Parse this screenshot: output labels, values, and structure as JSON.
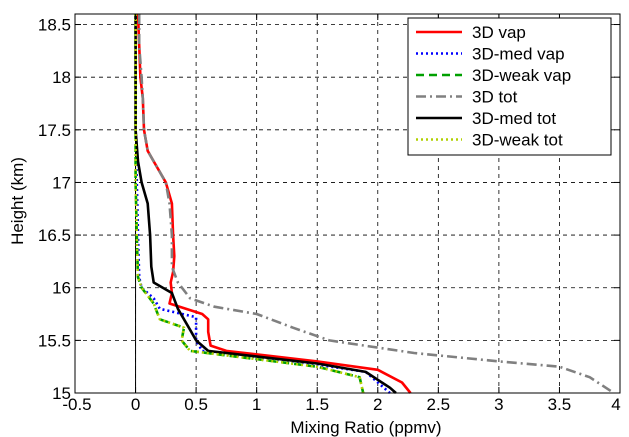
{
  "chart_data": {
    "type": "line",
    "title": "",
    "xlabel": "Mixing Ratio (ppmv)",
    "ylabel": "Height (km)",
    "xlim": [
      -0.5,
      4
    ],
    "ylim": [
      15,
      18.6
    ],
    "xticks": [
      -0.5,
      0,
      0.5,
      1,
      1.5,
      2,
      2.5,
      3,
      3.5,
      4
    ],
    "xtick_labels": [
      "-0.5",
      "0",
      "0.5",
      "1",
      "1.5",
      "2",
      "2.5",
      "3",
      "3.5",
      "4"
    ],
    "yticks": [
      15,
      15.5,
      16,
      16.5,
      17,
      17.5,
      18,
      18.5
    ],
    "ytick_labels": [
      "15",
      "15.5",
      "16",
      "16.5",
      "17",
      "17.5",
      "18",
      "18.5"
    ],
    "grid": true,
    "legend_position": "top-right",
    "reference_line_x": 0,
    "series": [
      {
        "name": "3D vap",
        "color": "#ff0000",
        "dash": "solid",
        "points": [
          [
            0.02,
            18.6
          ],
          [
            0.03,
            18.3
          ],
          [
            0.04,
            18.0
          ],
          [
            0.06,
            17.8
          ],
          [
            0.07,
            17.5
          ],
          [
            0.1,
            17.3
          ],
          [
            0.15,
            17.2
          ],
          [
            0.25,
            17.0
          ],
          [
            0.3,
            16.8
          ],
          [
            0.31,
            16.5
          ],
          [
            0.32,
            16.3
          ],
          [
            0.31,
            16.15
          ],
          [
            0.29,
            16.05
          ],
          [
            0.3,
            15.95
          ],
          [
            0.28,
            15.85
          ],
          [
            0.55,
            15.75
          ],
          [
            0.6,
            15.7
          ],
          [
            0.6,
            15.58
          ],
          [
            0.62,
            15.45
          ],
          [
            0.75,
            15.4
          ],
          [
            1.5,
            15.3
          ],
          [
            2.0,
            15.22
          ],
          [
            2.2,
            15.1
          ],
          [
            2.27,
            15.0
          ]
        ]
      },
      {
        "name": "3D-med vap",
        "color": "#0000ff",
        "dash": "dotted",
        "points": [
          [
            0.0,
            18.6
          ],
          [
            0.0,
            18.0
          ],
          [
            0.0,
            17.5
          ],
          [
            0.01,
            17.0
          ],
          [
            0.02,
            16.5
          ],
          [
            0.03,
            16.1
          ],
          [
            0.05,
            16.0
          ],
          [
            0.15,
            15.9
          ],
          [
            0.2,
            15.8
          ],
          [
            0.5,
            15.72
          ],
          [
            0.5,
            15.6
          ],
          [
            0.5,
            15.5
          ],
          [
            0.55,
            15.4
          ],
          [
            1.5,
            15.27
          ],
          [
            1.9,
            15.2
          ],
          [
            2.05,
            15.05
          ],
          [
            2.1,
            15.0
          ]
        ]
      },
      {
        "name": "3D-weak vap",
        "color": "#00a000",
        "dash": "dashed",
        "points": [
          [
            0.0,
            18.6
          ],
          [
            0.0,
            18.0
          ],
          [
            0.0,
            17.5
          ],
          [
            0.0,
            17.0
          ],
          [
            0.01,
            16.5
          ],
          [
            0.02,
            16.1
          ],
          [
            0.05,
            16.0
          ],
          [
            0.15,
            15.85
          ],
          [
            0.2,
            15.7
          ],
          [
            0.4,
            15.62
          ],
          [
            0.38,
            15.5
          ],
          [
            0.45,
            15.4
          ],
          [
            1.5,
            15.25
          ],
          [
            1.85,
            15.15
          ],
          [
            1.88,
            15.0
          ]
        ]
      },
      {
        "name": "3D tot",
        "color": "#808080",
        "dash": "dashdot",
        "points": [
          [
            0.03,
            18.6
          ],
          [
            0.03,
            18.3
          ],
          [
            0.05,
            18.0
          ],
          [
            0.06,
            17.8
          ],
          [
            0.07,
            17.5
          ],
          [
            0.1,
            17.3
          ],
          [
            0.15,
            17.2
          ],
          [
            0.25,
            17.0
          ],
          [
            0.28,
            16.8
          ],
          [
            0.3,
            16.5
          ],
          [
            0.3,
            16.2
          ],
          [
            0.35,
            16.05
          ],
          [
            0.45,
            15.9
          ],
          [
            0.65,
            15.82
          ],
          [
            1.0,
            15.75
          ],
          [
            1.3,
            15.62
          ],
          [
            1.6,
            15.5
          ],
          [
            2.3,
            15.38
          ],
          [
            3.0,
            15.3
          ],
          [
            3.5,
            15.25
          ],
          [
            3.75,
            15.15
          ],
          [
            3.95,
            15.0
          ]
        ]
      },
      {
        "name": "3D-med tot",
        "color": "#000000",
        "dash": "solid",
        "points": [
          [
            0.0,
            18.6
          ],
          [
            0.0,
            18.0
          ],
          [
            0.0,
            17.5
          ],
          [
            0.02,
            17.2
          ],
          [
            0.05,
            17.0
          ],
          [
            0.1,
            16.8
          ],
          [
            0.12,
            16.5
          ],
          [
            0.13,
            16.2
          ],
          [
            0.15,
            16.05
          ],
          [
            0.3,
            15.95
          ],
          [
            0.35,
            15.8
          ],
          [
            0.45,
            15.6
          ],
          [
            0.5,
            15.5
          ],
          [
            0.6,
            15.4
          ],
          [
            1.5,
            15.28
          ],
          [
            1.9,
            15.2
          ],
          [
            2.1,
            15.05
          ],
          [
            2.15,
            15.0
          ]
        ]
      },
      {
        "name": "3D-weak tot",
        "color": "#b0d000",
        "dash": "dotted",
        "points": [
          [
            0.0,
            18.6
          ],
          [
            0.0,
            18.0
          ],
          [
            0.0,
            17.5
          ],
          [
            0.0,
            17.0
          ],
          [
            0.01,
            16.5
          ],
          [
            0.02,
            16.1
          ],
          [
            0.05,
            16.0
          ],
          [
            0.15,
            15.85
          ],
          [
            0.2,
            15.7
          ],
          [
            0.4,
            15.62
          ],
          [
            0.38,
            15.5
          ],
          [
            0.45,
            15.4
          ],
          [
            1.5,
            15.25
          ],
          [
            1.85,
            15.15
          ],
          [
            1.88,
            15.0
          ]
        ]
      }
    ]
  }
}
